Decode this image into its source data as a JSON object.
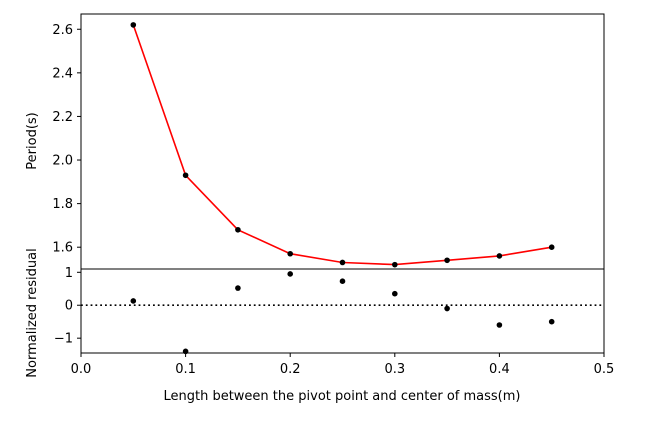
{
  "chart_data": [
    {
      "type": "line",
      "ylabel": "Period(s)",
      "xlim": [
        0.0,
        0.5
      ],
      "ylim": [
        1.5,
        2.67
      ],
      "yticks": [
        "1.6",
        "1.8",
        "2.0",
        "2.2",
        "2.4",
        "2.6"
      ],
      "series": [
        {
          "kind": "line",
          "color": "#ff0000",
          "x": [
            0.05,
            0.1,
            0.15,
            0.2,
            0.25,
            0.3,
            0.35,
            0.4,
            0.45
          ],
          "y": [
            2.62,
            1.93,
            1.68,
            1.57,
            1.53,
            1.52,
            1.54,
            1.56,
            1.6
          ]
        },
        {
          "kind": "scatter",
          "color": "#000000",
          "x": [
            0.05,
            0.1,
            0.15,
            0.2,
            0.25,
            0.3,
            0.35,
            0.4,
            0.45
          ],
          "y": [
            2.62,
            1.93,
            1.68,
            1.57,
            1.53,
            1.52,
            1.54,
            1.56,
            1.6
          ]
        }
      ]
    },
    {
      "type": "scatter",
      "xlabel": "Length between the pivot point and center of mass(m)",
      "ylabel": "Normalized residual",
      "xlim": [
        0.0,
        0.5
      ],
      "ylim": [
        -1.45,
        1.1
      ],
      "xticks": [
        "0.0",
        "0.1",
        "0.2",
        "0.3",
        "0.4",
        "0.5"
      ],
      "yticks": [
        "−1",
        "0",
        "1"
      ],
      "zero_line": "dotted",
      "series": [
        {
          "kind": "scatter",
          "color": "#000000",
          "x": [
            0.05,
            0.1,
            0.15,
            0.2,
            0.25,
            0.3,
            0.35,
            0.4,
            0.45
          ],
          "y": [
            0.13,
            -1.4,
            0.52,
            0.95,
            0.73,
            0.35,
            -0.1,
            -0.6,
            -0.5
          ]
        }
      ]
    }
  ]
}
